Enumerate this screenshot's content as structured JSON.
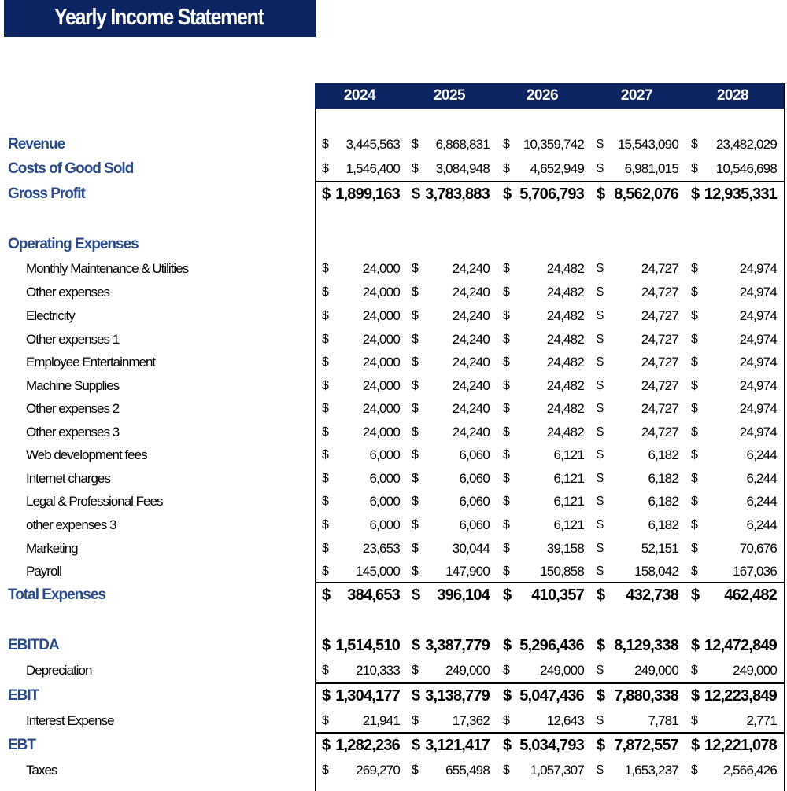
{
  "title": "Yearly Income Statement",
  "years": [
    "2024",
    "2025",
    "2026",
    "2027",
    "2028"
  ],
  "currency_symbol": "$",
  "rows": [
    {
      "label": "Revenue",
      "style": "bold",
      "values": [
        "3,445,563",
        "6,868,831",
        "10,359,742",
        "15,543,090",
        "23,482,029"
      ],
      "valstyle": "normal"
    },
    {
      "label": "Costs of Good Sold",
      "style": "bold",
      "values": [
        "1,546,400",
        "3,084,948",
        "4,652,949",
        "6,981,015",
        "10,546,698"
      ],
      "valstyle": "normal"
    },
    {
      "label": "Gross Profit",
      "style": "bold",
      "values": [
        "1,899,163",
        "3,783,883",
        "5,706,793",
        "8,562,076",
        "12,935,331"
      ],
      "valstyle": "bold",
      "line_above": true
    },
    {
      "label": "Operating Expenses",
      "style": "bold",
      "values": [],
      "valstyle": "normal"
    },
    {
      "label": "Monthly Maintenance & Utilities",
      "style": "indent",
      "values": [
        "24,000",
        "24,240",
        "24,482",
        "24,727",
        "24,974"
      ]
    },
    {
      "label": "Other expenses",
      "style": "indent",
      "values": [
        "24,000",
        "24,240",
        "24,482",
        "24,727",
        "24,974"
      ]
    },
    {
      "label": "Electricity",
      "style": "indent",
      "values": [
        "24,000",
        "24,240",
        "24,482",
        "24,727",
        "24,974"
      ]
    },
    {
      "label": "Other expenses 1",
      "style": "indent",
      "values": [
        "24,000",
        "24,240",
        "24,482",
        "24,727",
        "24,974"
      ]
    },
    {
      "label": "Employee Entertainment",
      "style": "indent",
      "values": [
        "24,000",
        "24,240",
        "24,482",
        "24,727",
        "24,974"
      ]
    },
    {
      "label": "Machine Supplies",
      "style": "indent",
      "values": [
        "24,000",
        "24,240",
        "24,482",
        "24,727",
        "24,974"
      ]
    },
    {
      "label": "Other expenses 2",
      "style": "indent",
      "values": [
        "24,000",
        "24,240",
        "24,482",
        "24,727",
        "24,974"
      ]
    },
    {
      "label": "Other expenses 3",
      "style": "indent",
      "values": [
        "24,000",
        "24,240",
        "24,482",
        "24,727",
        "24,974"
      ]
    },
    {
      "label": "Web development fees",
      "style": "indent",
      "values": [
        "6,000",
        "6,060",
        "6,121",
        "6,182",
        "6,244"
      ]
    },
    {
      "label": "Internet charges",
      "style": "indent",
      "values": [
        "6,000",
        "6,060",
        "6,121",
        "6,182",
        "6,244"
      ]
    },
    {
      "label": "Legal & Professional Fees",
      "style": "indent",
      "values": [
        "6,000",
        "6,060",
        "6,121",
        "6,182",
        "6,244"
      ]
    },
    {
      "label": "other expenses 3",
      "style": "indent",
      "values": [
        "6,000",
        "6,060",
        "6,121",
        "6,182",
        "6,244"
      ]
    },
    {
      "label": "Marketing",
      "style": "indent",
      "values": [
        "23,653",
        "30,044",
        "39,158",
        "52,151",
        "70,676"
      ]
    },
    {
      "label": "Payroll",
      "style": "indent",
      "values": [
        "145,000",
        "147,900",
        "150,858",
        "158,042",
        "167,036"
      ]
    },
    {
      "label": "Total Expenses",
      "style": "bold",
      "values": [
        "384,653",
        "396,104",
        "410,357",
        "432,738",
        "462,482"
      ],
      "valstyle": "bold",
      "line_above": true
    },
    {
      "label": "EBITDA",
      "style": "bold",
      "values": [
        "1,514,510",
        "3,387,779",
        "5,296,436",
        "8,129,338",
        "12,472,849"
      ],
      "valstyle": "bold"
    },
    {
      "label": "Depreciation",
      "style": "indent",
      "values": [
        "210,333",
        "249,000",
        "249,000",
        "249,000",
        "249,000"
      ]
    },
    {
      "label": "EBIT",
      "style": "bold",
      "values": [
        "1,304,177",
        "3,138,779",
        "5,047,436",
        "7,880,338",
        "12,223,849"
      ],
      "valstyle": "bold",
      "line_above": true
    },
    {
      "label": "Interest Expense",
      "style": "indent",
      "values": [
        "21,941",
        "17,362",
        "12,643",
        "7,781",
        "2,771"
      ]
    },
    {
      "label": "EBT",
      "style": "bold",
      "values": [
        "1,282,236",
        "3,121,417",
        "5,034,793",
        "7,872,557",
        "12,221,078"
      ],
      "valstyle": "bold",
      "line_above": true
    },
    {
      "label": "Taxes",
      "style": "indent",
      "values": [
        "269,270",
        "655,498",
        "1,057,307",
        "1,653,237",
        "2,566,426"
      ]
    }
  ]
}
